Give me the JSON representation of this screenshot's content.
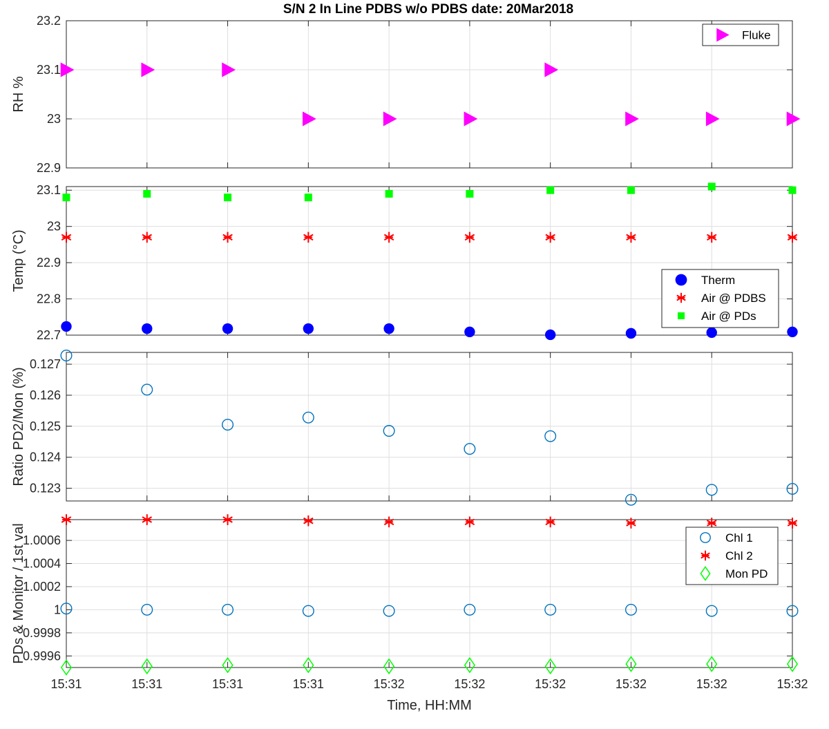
{
  "figure_title": "S/N 2 In Line PDBS w/o PDBS date: 20Mar2018",
  "chart_data": [
    {
      "type": "scatter",
      "ylabel": "RH %",
      "xlabel": "",
      "ylim": [
        22.9,
        23.2
      ],
      "yticks": [
        22.9,
        23,
        23.1,
        23.2
      ],
      "ytick_labels": [
        "22.9",
        "23",
        "23.1",
        "23.2"
      ],
      "grid": true,
      "legend_position": "top-right",
      "series": [
        {
          "name": "Fluke",
          "marker": "triangle-right",
          "color": "#ff00ff",
          "filled": true,
          "values": [
            23.1,
            23.1,
            23.1,
            23.0,
            23.0,
            23.0,
            23.1,
            23.0,
            23.0,
            23.0
          ]
        }
      ]
    },
    {
      "type": "scatter",
      "ylabel": "Temp (°C)",
      "xlabel": "",
      "ylim": [
        22.7,
        23.11
      ],
      "yticks": [
        22.7,
        22.8,
        22.9,
        23,
        23.1
      ],
      "ytick_labels": [
        "22.7",
        "22.8",
        "22.9",
        "23",
        "23.1"
      ],
      "grid": true,
      "legend_position": "right",
      "series": [
        {
          "name": "Therm",
          "marker": "circle-filled",
          "color": "#0000ff",
          "filled": true,
          "values": [
            22.724,
            22.718,
            22.718,
            22.718,
            22.718,
            22.709,
            22.701,
            22.705,
            22.707,
            22.709
          ]
        },
        {
          "name": "Air @ PDBS",
          "marker": "asterisk",
          "color": "#ff0000",
          "filled": false,
          "values": [
            22.97,
            22.97,
            22.97,
            22.97,
            22.97,
            22.97,
            22.97,
            22.97,
            22.97,
            22.97
          ]
        },
        {
          "name": "Air @ PDs",
          "marker": "square",
          "color": "#00ff00",
          "filled": true,
          "values": [
            23.08,
            23.09,
            23.08,
            23.08,
            23.09,
            23.09,
            23.1,
            23.1,
            23.11,
            23.1
          ]
        }
      ]
    },
    {
      "type": "scatter",
      "ylabel": "Ratio PD2/Mon (%)",
      "xlabel": "",
      "ylim": [
        0.12259,
        0.12738
      ],
      "yticks": [
        0.123,
        0.124,
        0.125,
        0.126,
        0.127
      ],
      "ytick_labels": [
        "0.123",
        "0.124",
        "0.125",
        "0.126",
        "0.127"
      ],
      "grid": true,
      "legend_position": "none",
      "series": [
        {
          "name": "",
          "marker": "circle-open",
          "color": "#0072bd",
          "filled": false,
          "values": [
            0.12728,
            0.12618,
            0.12505,
            0.12528,
            0.12485,
            0.12427,
            0.12468,
            0.12263,
            0.12295,
            0.12298
          ]
        }
      ]
    },
    {
      "type": "scatter",
      "ylabel": "PDs & Monitor / 1st val",
      "xlabel": "Time, HH:MM",
      "ylim": [
        0.9995,
        1.00078
      ],
      "yticks": [
        0.9996,
        0.9998,
        1,
        1.0002,
        1.0004,
        1.0006
      ],
      "ytick_labels": [
        "0.9996",
        "0.9998",
        "1",
        "1.0002",
        "1.0004",
        "1.0006"
      ],
      "grid": true,
      "legend_position": "right",
      "x_tick_labels": [
        "15:31",
        "15:31",
        "15:31",
        "15:31",
        "15:32",
        "15:32",
        "15:32",
        "15:32",
        "15:32",
        "15:32"
      ],
      "series": [
        {
          "name": "Chl 1",
          "marker": "circle-open",
          "color": "#0072bd",
          "filled": false,
          "values": [
            1.00001,
            1.0,
            1.0,
            0.99999,
            0.99999,
            1.0,
            1.0,
            1.0,
            0.99999,
            0.99999
          ]
        },
        {
          "name": "Chl 2",
          "marker": "asterisk",
          "color": "#ff0000",
          "filled": false,
          "values": [
            1.00078,
            1.00078,
            1.00078,
            1.00077,
            1.00076,
            1.00076,
            1.00076,
            1.00075,
            1.00075,
            1.00075
          ]
        },
        {
          "name": "Mon PD",
          "marker": "diamond-open",
          "color": "#00ff00",
          "filled": false,
          "values": [
            0.9995,
            0.99951,
            0.99952,
            0.99952,
            0.99951,
            0.99952,
            0.99951,
            0.99953,
            0.99953,
            0.99953
          ]
        }
      ]
    }
  ]
}
